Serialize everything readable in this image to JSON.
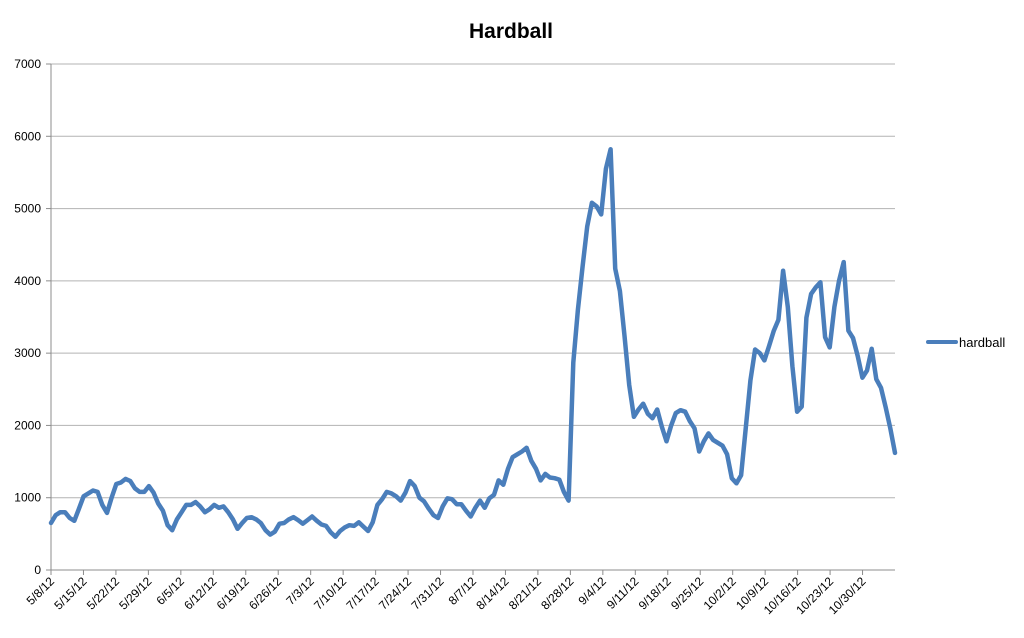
{
  "chart_data": {
    "type": "line",
    "title": "Hardball",
    "xlabel": "",
    "ylabel": "",
    "ylim": [
      0,
      7000
    ],
    "y_ticks": [
      "0",
      "1000",
      "2000",
      "3000",
      "4000",
      "5000",
      "6000",
      "7000"
    ],
    "grid": true,
    "legend_position": "right",
    "x_start": "2012-05-08",
    "x_end": "2012-11-06",
    "x_tick_labels": [
      "5/8/12",
      "5/15/12",
      "5/22/12",
      "5/29/12",
      "6/5/12",
      "6/12/12",
      "6/19/12",
      "6/26/12",
      "7/3/12",
      "7/10/12",
      "7/17/12",
      "7/24/12",
      "7/31/12",
      "8/7/12",
      "8/14/12",
      "8/21/12",
      "8/28/12",
      "9/4/12",
      "9/11/12",
      "9/18/12",
      "9/25/12",
      "10/2/12",
      "10/9/12",
      "10/16/12",
      "10/23/12",
      "10/30/12"
    ],
    "x_tick_dates": [
      "2012-05-08",
      "2012-05-15",
      "2012-05-22",
      "2012-05-29",
      "2012-06-05",
      "2012-06-12",
      "2012-06-19",
      "2012-06-26",
      "2012-07-03",
      "2012-07-10",
      "2012-07-17",
      "2012-07-24",
      "2012-07-31",
      "2012-08-07",
      "2012-08-14",
      "2012-08-21",
      "2012-08-28",
      "2012-09-04",
      "2012-09-11",
      "2012-09-18",
      "2012-09-25",
      "2012-10-02",
      "2012-10-09",
      "2012-10-16",
      "2012-10-23",
      "2012-10-30"
    ],
    "series": [
      {
        "name": "hardball",
        "color": "#4a7ebb",
        "values": [
          650,
          760,
          800,
          800,
          720,
          680,
          850,
          1020,
          1060,
          1100,
          1080,
          900,
          790,
          1000,
          1190,
          1210,
          1260,
          1230,
          1130,
          1080,
          1080,
          1160,
          1070,
          920,
          820,
          620,
          550,
          700,
          800,
          900,
          900,
          940,
          880,
          800,
          840,
          900,
          860,
          880,
          800,
          700,
          570,
          650,
          720,
          730,
          700,
          650,
          550,
          490,
          530,
          640,
          650,
          700,
          730,
          690,
          640,
          690,
          740,
          680,
          630,
          610,
          520,
          460,
          540,
          590,
          620,
          610,
          660,
          600,
          540,
          660,
          900,
          980,
          1080,
          1060,
          1020,
          960,
          1070,
          1230,
          1160,
          1000,
          950,
          850,
          760,
          720,
          880,
          990,
          980,
          910,
          910,
          820,
          740,
          860,
          960,
          860,
          990,
          1040,
          1240,
          1180,
          1400,
          1560,
          1600,
          1640,
          1690,
          1510,
          1400,
          1240,
          1330,
          1280,
          1270,
          1250,
          1080,
          960,
          2870,
          3600,
          4200,
          4750,
          5080,
          5030,
          4920,
          5550,
          5820,
          4170,
          3860,
          3240,
          2560,
          2120,
          2220,
          2300,
          2160,
          2100,
          2220,
          1980,
          1780,
          2000,
          2170,
          2210,
          2190,
          2060,
          1960,
          1640,
          1780,
          1890,
          1800,
          1760,
          1720,
          1600,
          1270,
          1200,
          1310,
          1970,
          2620,
          3050,
          3000,
          2900,
          3100,
          3310,
          3460,
          4140,
          3640,
          2820,
          2190,
          2260,
          3490,
          3820,
          3910,
          3980,
          3220,
          3080,
          3640,
          4000,
          4260,
          3310,
          3210,
          2960,
          2660,
          2760,
          3060,
          2640,
          2520,
          2250,
          1960,
          1620
        ]
      }
    ]
  }
}
